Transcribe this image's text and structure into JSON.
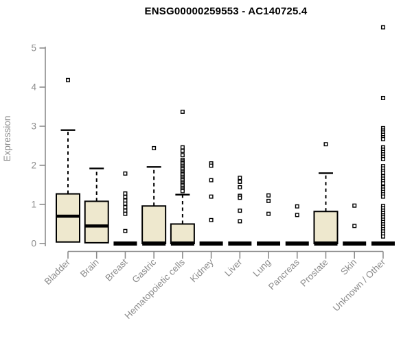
{
  "chart_data": {
    "type": "boxplot",
    "title": "ENSG00000259553 - AC140725.4",
    "ylabel": "Expression",
    "xlabel": "",
    "ylim": [
      0,
      5.6
    ],
    "yticks": [
      0,
      1,
      2,
      3,
      4,
      5
    ],
    "grid": false,
    "legend": false,
    "categories": [
      "Bladder",
      "Brain",
      "Breast",
      "Gastric",
      "Hematopoietic cells",
      "Kidney",
      "Liver",
      "Lung",
      "Pancreas",
      "Prostate",
      "Skin",
      "Unknown / Other"
    ],
    "boxes": [
      {
        "category": "Bladder",
        "q1": 0.04,
        "median": 0.7,
        "q3": 1.27,
        "whisker_low": 0.04,
        "whisker_high": 2.9,
        "outliers": [
          4.18
        ]
      },
      {
        "category": "Brain",
        "q1": 0.02,
        "median": 0.45,
        "q3": 1.08,
        "whisker_low": 0.02,
        "whisker_high": 1.92,
        "outliers": []
      },
      {
        "category": "Breast",
        "q1": 0,
        "median": 0,
        "q3": 0,
        "whisker_low": 0,
        "whisker_high": 0,
        "outliers": [
          1.79,
          1.28,
          1.19,
          1.1,
          1.02,
          0.93,
          0.84,
          0.76,
          0.32
        ]
      },
      {
        "category": "Gastric",
        "q1": 0,
        "median": 0,
        "q3": 0.96,
        "whisker_low": 0,
        "whisker_high": 1.96,
        "outliers": [
          2.44
        ]
      },
      {
        "category": "Hematopoietic cells",
        "q1": 0,
        "median": 0,
        "q3": 0.5,
        "whisker_low": 0,
        "whisker_high": 1.25,
        "outliers": [
          3.37,
          2.46,
          2.37,
          2.26,
          2.14,
          2.1,
          2.06,
          2.02,
          1.98,
          1.94,
          1.9,
          1.86,
          1.82,
          1.78,
          1.74,
          1.7,
          1.66,
          1.62,
          1.58,
          1.54,
          1.5,
          1.46,
          1.42,
          1.38,
          1.34
        ]
      },
      {
        "category": "Kidney",
        "q1": 0,
        "median": 0,
        "q3": 0,
        "whisker_low": 0,
        "whisker_high": 0,
        "outliers": [
          2.05,
          1.99,
          1.62,
          1.2,
          0.6
        ]
      },
      {
        "category": "Liver",
        "q1": 0,
        "median": 0,
        "q3": 0,
        "whisker_low": 0,
        "whisker_high": 0,
        "outliers": [
          1.68,
          1.58,
          1.44,
          1.22,
          1.17,
          0.84,
          0.57
        ]
      },
      {
        "category": "Lung",
        "q1": 0,
        "median": 0,
        "q3": 0,
        "whisker_low": 0,
        "whisker_high": 0,
        "outliers": [
          1.23,
          1.09,
          0.76
        ]
      },
      {
        "category": "Pancreas",
        "q1": 0,
        "median": 0,
        "q3": 0,
        "whisker_low": 0,
        "whisker_high": 0,
        "outliers": [
          0.95,
          0.73
        ]
      },
      {
        "category": "Prostate",
        "q1": 0,
        "median": 0,
        "q3": 0.82,
        "whisker_low": 0,
        "whisker_high": 1.8,
        "outliers": [
          2.54
        ]
      },
      {
        "category": "Skin",
        "q1": 0,
        "median": 0,
        "q3": 0,
        "whisker_low": 0,
        "whisker_high": 0,
        "outliers": [
          0.97,
          0.45
        ]
      },
      {
        "category": "Unknown / Other",
        "q1": 0,
        "median": 0,
        "q3": 0,
        "whisker_low": 0,
        "whisker_high": 0,
        "outliers": [
          5.53,
          3.72,
          2.95,
          2.89,
          2.84,
          2.78,
          2.72,
          2.67,
          2.46,
          2.4,
          2.34,
          2.28,
          2.22,
          2.16,
          1.98,
          1.92,
          1.86,
          1.81,
          1.72,
          1.66,
          1.6,
          1.54,
          1.44,
          1.38,
          1.32,
          1.26,
          1.2,
          0.96,
          0.9,
          0.84,
          0.78,
          0.72,
          0.67,
          0.61,
          0.55,
          0.49,
          0.43,
          0.37,
          0.31,
          0.25,
          0.18
        ]
      }
    ],
    "colors": {
      "box_fill": "#EEE8CE",
      "box_border": "#000000",
      "median": "#000000",
      "whisker": "#000000",
      "outlier_fill": "#FFFFFF",
      "outlier_border": "#000000",
      "axis": "#8C8C8C",
      "tick_label": "#8C8C8C",
      "title": "#000000",
      "background": "#FFFFFF"
    }
  }
}
